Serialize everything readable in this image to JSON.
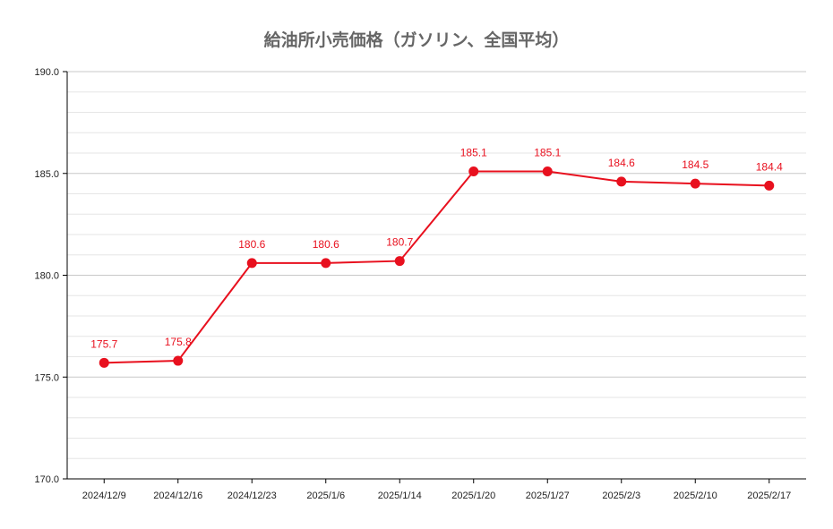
{
  "chart_data": {
    "type": "line",
    "title": "給油所小売価格（ガソリン、全国平均）",
    "categories": [
      "2024/12/9",
      "2024/12/16",
      "2024/12/23",
      "2025/1/6",
      "2025/1/14",
      "2025/1/20",
      "2025/1/27",
      "2025/2/3",
      "2025/2/10",
      "2025/2/17"
    ],
    "series": [
      {
        "name": "",
        "values": [
          175.7,
          175.8,
          180.6,
          180.6,
          180.7,
          185.1,
          185.1,
          184.6,
          184.5,
          184.4
        ]
      }
    ],
    "data_labels": [
      "175.7",
      "175.8",
      "180.6",
      "180.6",
      "180.7",
      "185.1",
      "185.1",
      "184.6",
      "184.5",
      "184.4"
    ],
    "ylim": [
      170,
      190
    ],
    "y_ticks": [
      "170.0",
      "175.0",
      "180.0",
      "185.0",
      "190.0"
    ],
    "xlabel": "",
    "ylabel": "",
    "grid": true,
    "legend": "none",
    "colors": {
      "series": "#e8101e",
      "major_grid": "#c8c8c8",
      "minor_grid": "#e6e6e6",
      "axis": "#000000",
      "title": "#666666"
    }
  }
}
